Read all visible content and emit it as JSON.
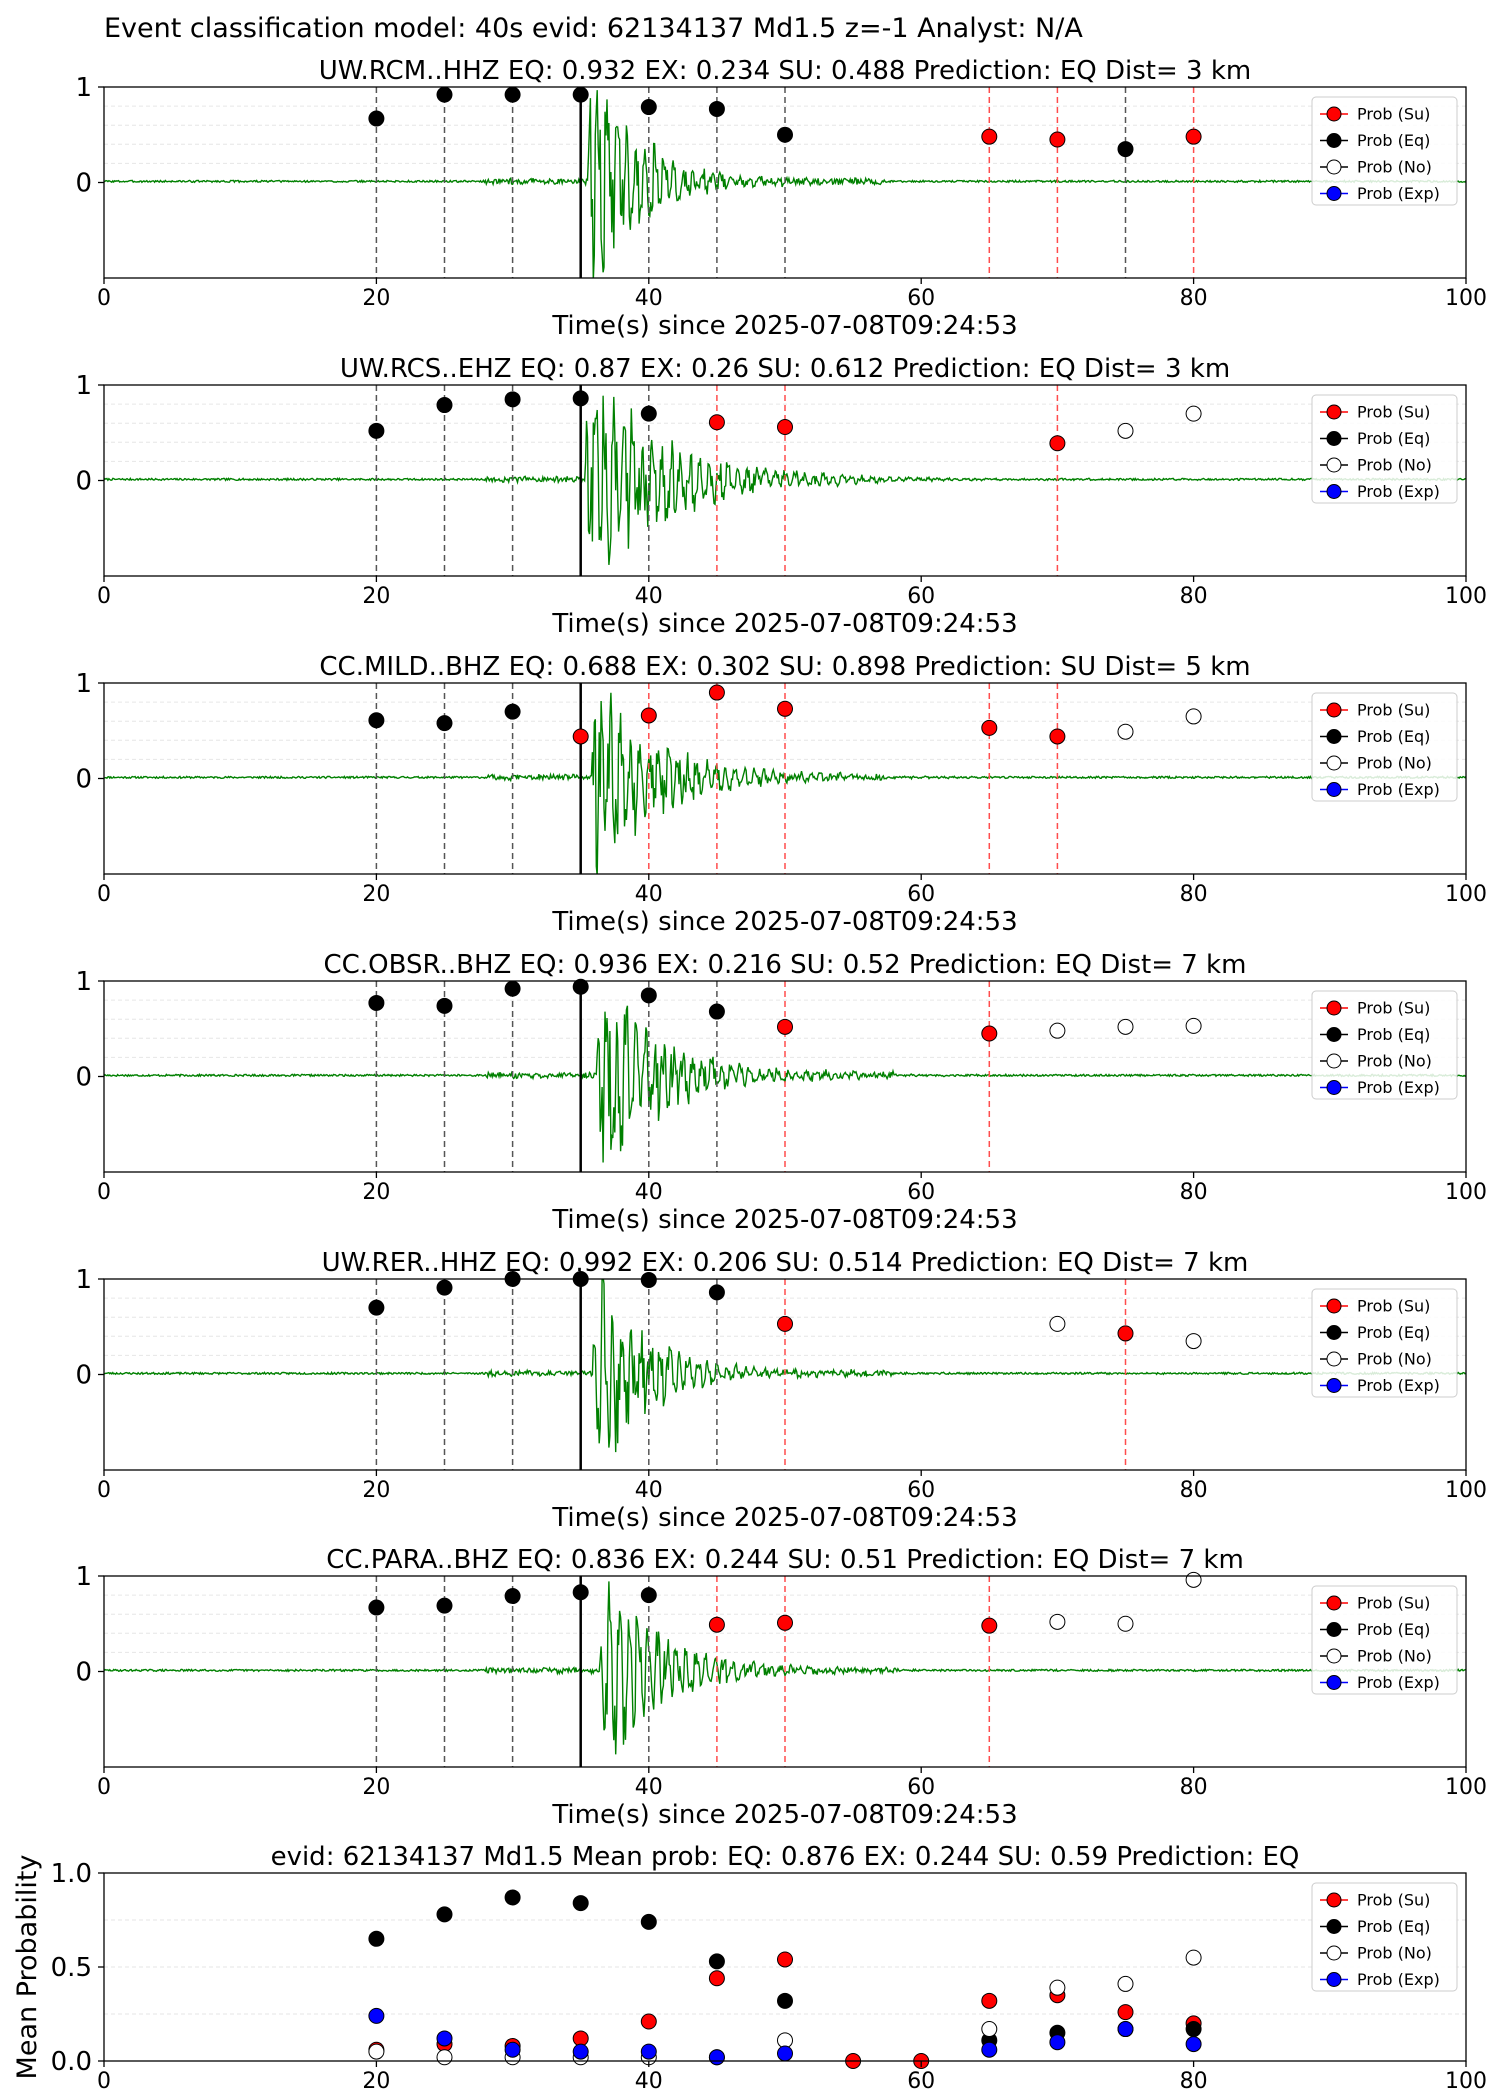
{
  "suptitle": "Event classification model: 40s evid: 62134137 Md1.5 z=-1 Analyst: N/A",
  "colors": {
    "su": "#ff0000",
    "eq": "#000000",
    "no": "#ffffff",
    "exp": "#0000ff",
    "wave": "#008000"
  },
  "legend": [
    "Prob (Su)",
    "Prob (Eq)",
    "Prob (No)",
    "Prob (Exp)"
  ],
  "chart_data": [
    {
      "type": "scatter",
      "title": "UW.RCM..HHZ   EQ: 0.932  EX: 0.234  SU: 0.488   Prediction: EQ    Dist= 3 km",
      "xlabel": "Time(s) since 2025-07-08T09:24:53",
      "xlim": [
        0,
        100
      ],
      "ylim": [
        -1,
        1
      ],
      "yticks": [
        0,
        1
      ],
      "xticks": [
        0,
        20,
        40,
        60,
        80,
        100
      ],
      "origin_time": 35,
      "wave": {
        "onset": 35.5,
        "amp": 1.4,
        "decay": 3.5,
        "seed": 3
      },
      "points": [
        {
          "x": 20,
          "y": 0.67,
          "c": "eq"
        },
        {
          "x": 25,
          "y": 0.92,
          "c": "eq"
        },
        {
          "x": 30,
          "y": 0.92,
          "c": "eq"
        },
        {
          "x": 35,
          "y": 0.92,
          "c": "eq"
        },
        {
          "x": 40,
          "y": 0.79,
          "c": "eq"
        },
        {
          "x": 45,
          "y": 0.77,
          "c": "eq"
        },
        {
          "x": 50,
          "y": 0.5,
          "c": "eq"
        },
        {
          "x": 65,
          "y": 0.48,
          "c": "su"
        },
        {
          "x": 70,
          "y": 0.45,
          "c": "su"
        },
        {
          "x": 75,
          "y": 0.35,
          "c": "eq"
        },
        {
          "x": 80,
          "y": 0.48,
          "c": "su"
        }
      ]
    },
    {
      "type": "scatter",
      "title": "UW.RCS..EHZ   EQ: 0.87  EX: 0.26  SU: 0.612   Prediction: EQ    Dist= 3 km",
      "xlabel": "Time(s) since 2025-07-08T09:24:53",
      "xlim": [
        0,
        100
      ],
      "ylim": [
        -1,
        1
      ],
      "yticks": [
        0,
        1
      ],
      "xticks": [
        0,
        20,
        40,
        60,
        80,
        100
      ],
      "origin_time": 35,
      "wave": {
        "onset": 35.3,
        "amp": 1.3,
        "decay": 5.5,
        "seed": 7
      },
      "points": [
        {
          "x": 20,
          "y": 0.52,
          "c": "eq"
        },
        {
          "x": 25,
          "y": 0.79,
          "c": "eq"
        },
        {
          "x": 30,
          "y": 0.85,
          "c": "eq"
        },
        {
          "x": 35,
          "y": 0.86,
          "c": "eq"
        },
        {
          "x": 40,
          "y": 0.7,
          "c": "eq"
        },
        {
          "x": 45,
          "y": 0.61,
          "c": "su"
        },
        {
          "x": 50,
          "y": 0.56,
          "c": "su"
        },
        {
          "x": 70,
          "y": 0.39,
          "c": "su"
        },
        {
          "x": 75,
          "y": 0.52,
          "c": "no"
        },
        {
          "x": 80,
          "y": 0.7,
          "c": "no"
        }
      ]
    },
    {
      "type": "scatter",
      "title": "CC.MILD..BHZ   EQ: 0.688  EX: 0.302  SU: 0.898   Prediction: SU    Dist= 5 km",
      "xlabel": "Time(s) since 2025-07-08T09:24:53",
      "xlim": [
        0,
        100
      ],
      "ylim": [
        -1,
        1
      ],
      "yticks": [
        0,
        1
      ],
      "xticks": [
        0,
        20,
        40,
        60,
        80,
        100
      ],
      "origin_time": 35,
      "wave": {
        "onset": 35.8,
        "amp": 1.25,
        "decay": 4.5,
        "seed": 11
      },
      "points": [
        {
          "x": 20,
          "y": 0.61,
          "c": "eq"
        },
        {
          "x": 25,
          "y": 0.58,
          "c": "eq"
        },
        {
          "x": 30,
          "y": 0.7,
          "c": "eq"
        },
        {
          "x": 35,
          "y": 0.44,
          "c": "su"
        },
        {
          "x": 40,
          "y": 0.66,
          "c": "su"
        },
        {
          "x": 45,
          "y": 0.9,
          "c": "su"
        },
        {
          "x": 50,
          "y": 0.73,
          "c": "su"
        },
        {
          "x": 65,
          "y": 0.53,
          "c": "su"
        },
        {
          "x": 70,
          "y": 0.44,
          "c": "su"
        },
        {
          "x": 75,
          "y": 0.49,
          "c": "no"
        },
        {
          "x": 80,
          "y": 0.65,
          "c": "no"
        }
      ]
    },
    {
      "type": "scatter",
      "title": "CC.OBSR..BHZ   EQ: 0.936  EX: 0.216  SU: 0.52   Prediction: EQ    Dist= 7 km",
      "xlabel": "Time(s) since 2025-07-08T09:24:53",
      "xlim": [
        0,
        100
      ],
      "ylim": [
        -1,
        1
      ],
      "yticks": [
        0,
        1
      ],
      "xticks": [
        0,
        20,
        40,
        60,
        80,
        100
      ],
      "origin_time": 35,
      "wave": {
        "onset": 36.2,
        "amp": 1.2,
        "decay": 4.5,
        "seed": 17
      },
      "points": [
        {
          "x": 20,
          "y": 0.77,
          "c": "eq"
        },
        {
          "x": 25,
          "y": 0.74,
          "c": "eq"
        },
        {
          "x": 30,
          "y": 0.92,
          "c": "eq"
        },
        {
          "x": 35,
          "y": 0.94,
          "c": "eq"
        },
        {
          "x": 40,
          "y": 0.85,
          "c": "eq"
        },
        {
          "x": 45,
          "y": 0.68,
          "c": "eq"
        },
        {
          "x": 50,
          "y": 0.52,
          "c": "su"
        },
        {
          "x": 65,
          "y": 0.45,
          "c": "su"
        },
        {
          "x": 70,
          "y": 0.48,
          "c": "no"
        },
        {
          "x": 75,
          "y": 0.52,
          "c": "no"
        },
        {
          "x": 80,
          "y": 0.53,
          "c": "no"
        }
      ]
    },
    {
      "type": "scatter",
      "title": "UW.RER..HHZ   EQ: 0.992  EX: 0.206  SU: 0.514   Prediction: EQ    Dist= 7 km",
      "xlabel": "Time(s) since 2025-07-08T09:24:53",
      "xlim": [
        0,
        100
      ],
      "ylim": [
        -1,
        1
      ],
      "yticks": [
        0,
        1
      ],
      "xticks": [
        0,
        20,
        40,
        60,
        80,
        100
      ],
      "origin_time": 35,
      "wave": {
        "onset": 35.9,
        "amp": 1.2,
        "decay": 3.8,
        "seed": 23
      },
      "points": [
        {
          "x": 20,
          "y": 0.7,
          "c": "eq"
        },
        {
          "x": 25,
          "y": 0.91,
          "c": "eq"
        },
        {
          "x": 30,
          "y": 1.0,
          "c": "eq"
        },
        {
          "x": 35,
          "y": 1.0,
          "c": "eq"
        },
        {
          "x": 40,
          "y": 0.99,
          "c": "eq"
        },
        {
          "x": 45,
          "y": 0.86,
          "c": "eq"
        },
        {
          "x": 50,
          "y": 0.53,
          "c": "su"
        },
        {
          "x": 70,
          "y": 0.53,
          "c": "no"
        },
        {
          "x": 75,
          "y": 0.43,
          "c": "su"
        },
        {
          "x": 80,
          "y": 0.35,
          "c": "no"
        }
      ]
    },
    {
      "type": "scatter",
      "title": "CC.PARA..BHZ   EQ: 0.836  EX: 0.244  SU: 0.51   Prediction: EQ    Dist= 7 km",
      "xlabel": "Time(s) since 2025-07-08T09:24:53",
      "xlim": [
        0,
        100
      ],
      "ylim": [
        -1,
        1
      ],
      "yticks": [
        0,
        1
      ],
      "xticks": [
        0,
        20,
        40,
        60,
        80,
        100
      ],
      "origin_time": 35,
      "wave": {
        "onset": 36.4,
        "amp": 1.15,
        "decay": 4.2,
        "seed": 29
      },
      "points": [
        {
          "x": 20,
          "y": 0.67,
          "c": "eq"
        },
        {
          "x": 25,
          "y": 0.69,
          "c": "eq"
        },
        {
          "x": 30,
          "y": 0.79,
          "c": "eq"
        },
        {
          "x": 35,
          "y": 0.83,
          "c": "eq"
        },
        {
          "x": 40,
          "y": 0.8,
          "c": "eq"
        },
        {
          "x": 45,
          "y": 0.49,
          "c": "su"
        },
        {
          "x": 50,
          "y": 0.51,
          "c": "su"
        },
        {
          "x": 65,
          "y": 0.48,
          "c": "su"
        },
        {
          "x": 70,
          "y": 0.52,
          "c": "no"
        },
        {
          "x": 75,
          "y": 0.5,
          "c": "no"
        },
        {
          "x": 80,
          "y": 0.96,
          "c": "no"
        }
      ]
    },
    {
      "type": "scatter",
      "title": "evid: 62134137  Md1.5   Mean prob:   EQ: 0.876  EX: 0.244  SU: 0.59   Prediction: EQ",
      "ylabel": "Mean Probability",
      "xlim": [
        0,
        100
      ],
      "ylim": [
        0,
        1
      ],
      "xticks": [
        0,
        20,
        40,
        60,
        80,
        100
      ],
      "yticks": [
        0.0,
        0.5,
        1.0
      ],
      "yticklabels": [
        "0.0",
        "0.5",
        "1.0"
      ],
      "series": [
        {
          "name": "Prob (Su)",
          "c": "su",
          "x": [
            20,
            25,
            30,
            35,
            40,
            45,
            50,
            55,
            60,
            65,
            70,
            75,
            80
          ],
          "y": [
            0.06,
            0.09,
            0.08,
            0.12,
            0.21,
            0.44,
            0.54,
            0.0,
            0.0,
            0.32,
            0.35,
            0.26,
            0.2
          ]
        },
        {
          "name": "Prob (Eq)",
          "c": "eq",
          "x": [
            20,
            25,
            30,
            35,
            40,
            45,
            50,
            65,
            70,
            75,
            80
          ],
          "y": [
            0.65,
            0.78,
            0.87,
            0.84,
            0.74,
            0.53,
            0.32,
            0.11,
            0.15,
            0.17,
            0.17
          ]
        },
        {
          "name": "Prob (No)",
          "c": "no",
          "x": [
            20,
            25,
            30,
            35,
            40,
            45,
            50,
            65,
            70,
            75,
            80
          ],
          "y": [
            0.05,
            0.02,
            0.02,
            0.02,
            0.02,
            0.02,
            0.11,
            0.17,
            0.39,
            0.41,
            0.55
          ]
        },
        {
          "name": "Prob (Exp)",
          "c": "exp",
          "x": [
            20,
            25,
            30,
            35,
            40,
            45,
            50,
            65,
            70,
            75,
            80
          ],
          "y": [
            0.24,
            0.12,
            0.06,
            0.05,
            0.05,
            0.02,
            0.04,
            0.06,
            0.1,
            0.17,
            0.09
          ]
        }
      ]
    }
  ]
}
